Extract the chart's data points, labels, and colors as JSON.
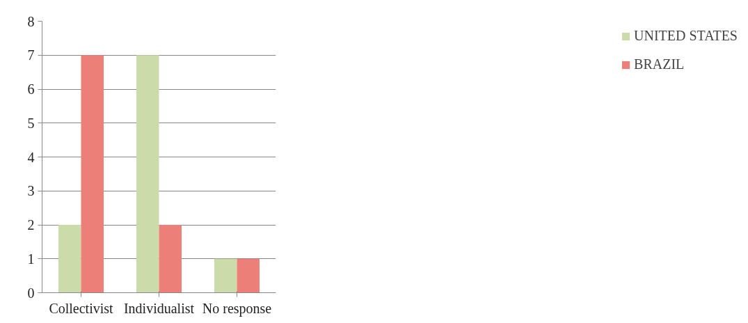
{
  "chart_data": {
    "type": "bar",
    "categories": [
      "Collectivist",
      "Individualist",
      "No response"
    ],
    "series": [
      {
        "name": "UNITED STATES",
        "color": "#cbdcaa",
        "values": [
          2,
          7,
          1
        ]
      },
      {
        "name": "BRAZIL",
        "color": "#ec7f78",
        "values": [
          7,
          2,
          1
        ]
      }
    ],
    "ylim": [
      0,
      8
    ],
    "yticks": [
      0,
      1,
      2,
      3,
      4,
      5,
      6,
      7,
      8
    ],
    "grid": "y",
    "legend": "right"
  }
}
